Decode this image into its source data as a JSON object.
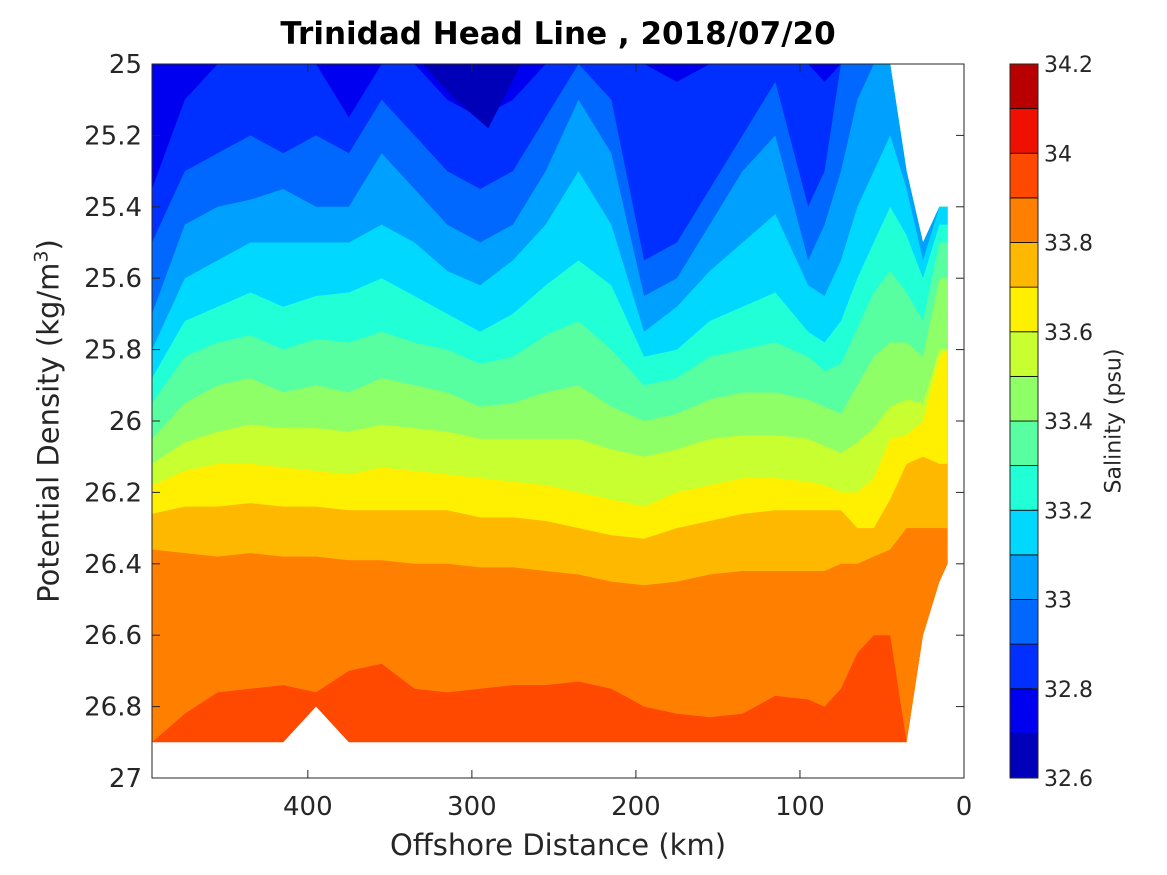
{
  "chart_data": {
    "type": "contour",
    "title": "Trinidad Head Line , 2018/07/20",
    "xlabel": "Offshore Distance (km)",
    "ylabel_main": "Potential Density (kg/m",
    "ylabel_sup": "3",
    "ylabel_close": ")",
    "colorbar_label": "Salinity (psu)",
    "x_axis": {
      "lim": [
        0,
        495
      ],
      "reversed": true,
      "ticks": [
        400,
        300,
        200,
        100,
        0
      ]
    },
    "y_axis": {
      "lim": [
        25,
        27
      ],
      "reversed": true,
      "ticks": [
        25,
        25.2,
        25.4,
        25.6,
        25.8,
        26,
        26.2,
        26.4,
        26.6,
        26.8,
        27
      ]
    },
    "colorbar": {
      "lim": [
        32.6,
        34.2
      ],
      "ticks": [
        32.6,
        32.8,
        33,
        33.2,
        33.4,
        33.6,
        33.8,
        34,
        34.2
      ],
      "levels": [
        32.6,
        32.7,
        32.8,
        32.9,
        33.0,
        33.1,
        33.2,
        33.3,
        33.4,
        33.5,
        33.6,
        33.7,
        33.8,
        33.9,
        34.0,
        34.1,
        34.2
      ],
      "colors": [
        "#00007f",
        "#0000b8",
        "#0000f0",
        "#0030ff",
        "#0068ff",
        "#00a0ff",
        "#00d8ff",
        "#21ffd6",
        "#58ffa0",
        "#8fff68",
        "#c8ff30",
        "#ffef00",
        "#ffb800",
        "#ff7f00",
        "#ff4800",
        "#f01000",
        "#b80000"
      ]
    },
    "x_sections_km": [
      495,
      475,
      455,
      435,
      415,
      395,
      375,
      355,
      335,
      315,
      295,
      275,
      255,
      235,
      215,
      195,
      175,
      155,
      135,
      115,
      95,
      85,
      75,
      65,
      55,
      45,
      35,
      25,
      15,
      10
    ],
    "bottom_density": [
      26.9,
      26.9,
      26.9,
      26.9,
      26.9,
      26.8,
      26.9,
      26.9,
      26.9,
      26.9,
      26.9,
      26.9,
      26.9,
      26.9,
      26.9,
      26.9,
      26.9,
      26.9,
      26.9,
      26.9,
      26.9,
      26.9,
      26.9,
      26.9,
      26.9,
      26.9,
      26.9,
      26.6,
      26.45,
      26.4
    ],
    "top_density": [
      25.0,
      25.0,
      25.0,
      25.0,
      25.0,
      25.0,
      25.0,
      25.0,
      25.0,
      25.0,
      25.0,
      25.0,
      25.0,
      25.0,
      25.0,
      25.0,
      25.0,
      25.0,
      25.0,
      25.0,
      25.0,
      25.0,
      25.0,
      25.0,
      25.0,
      25.0,
      25.3,
      25.5,
      25.4,
      25.4
    ],
    "isohalines": [
      {
        "level": 32.9,
        "density": [
          25.35,
          25.1,
          25.0,
          25.0,
          25.0,
          25.0,
          25.15,
          25.0,
          25.0,
          25.1,
          25.15,
          25.1,
          25.0,
          25.0,
          25.0,
          25.0,
          25.05,
          25.0,
          25.0,
          25.0,
          25.0,
          25.05,
          25.0,
          25.0,
          25.0,
          25.0,
          25.0,
          25.0,
          25.0,
          25.0
        ]
      },
      {
        "level": 33.0,
        "density": [
          25.5,
          25.3,
          25.25,
          25.2,
          25.25,
          25.2,
          25.25,
          25.1,
          25.2,
          25.3,
          25.35,
          25.3,
          25.15,
          25.0,
          25.1,
          25.55,
          25.5,
          25.35,
          25.2,
          25.05,
          25.4,
          25.3,
          25.0,
          25.0,
          25.0,
          25.0,
          25.0,
          25.0,
          25.0,
          25.0
        ]
      },
      {
        "level": 33.1,
        "density": [
          25.7,
          25.45,
          25.4,
          25.38,
          25.35,
          25.4,
          25.4,
          25.25,
          25.35,
          25.45,
          25.5,
          25.45,
          25.3,
          25.1,
          25.25,
          25.65,
          25.6,
          25.45,
          25.3,
          25.2,
          25.55,
          25.45,
          25.3,
          25.1,
          25.0,
          25.0,
          25.0,
          25.0,
          25.0,
          25.0
        ]
      },
      {
        "level": 33.2,
        "density": [
          25.8,
          25.6,
          25.55,
          25.5,
          25.5,
          25.5,
          25.5,
          25.45,
          25.5,
          25.58,
          25.62,
          25.55,
          25.45,
          25.3,
          25.45,
          25.75,
          25.68,
          25.58,
          25.5,
          25.42,
          25.62,
          25.65,
          25.55,
          25.4,
          25.3,
          25.2,
          25.35,
          25.55,
          25.4,
          25.4
        ]
      },
      {
        "level": 33.3,
        "density": [
          25.88,
          25.72,
          25.68,
          25.64,
          25.68,
          25.65,
          25.64,
          25.6,
          25.65,
          25.7,
          25.75,
          25.7,
          25.62,
          25.55,
          25.62,
          25.82,
          25.8,
          25.72,
          25.68,
          25.64,
          25.75,
          25.78,
          25.72,
          25.6,
          25.5,
          25.4,
          25.48,
          25.6,
          25.45,
          25.45
        ]
      },
      {
        "level": 33.4,
        "density": [
          25.95,
          25.82,
          25.78,
          25.76,
          25.8,
          25.77,
          25.78,
          25.75,
          25.78,
          25.8,
          25.84,
          25.82,
          25.76,
          25.72,
          25.8,
          25.9,
          25.88,
          25.82,
          25.8,
          25.78,
          25.82,
          25.86,
          25.84,
          25.74,
          25.64,
          25.58,
          25.64,
          25.72,
          25.5,
          25.5
        ]
      },
      {
        "level": 33.5,
        "density": [
          26.05,
          25.95,
          25.9,
          25.88,
          25.92,
          25.9,
          25.92,
          25.88,
          25.9,
          25.92,
          25.96,
          25.95,
          25.92,
          25.9,
          25.96,
          26.0,
          25.98,
          25.94,
          25.92,
          25.92,
          25.94,
          25.96,
          25.98,
          25.9,
          25.82,
          25.78,
          25.78,
          25.82,
          25.6,
          25.6
        ]
      },
      {
        "level": 33.6,
        "density": [
          26.12,
          26.06,
          26.03,
          26.01,
          26.02,
          26.02,
          26.03,
          26.01,
          26.02,
          26.03,
          26.05,
          26.05,
          26.05,
          26.05,
          26.08,
          26.1,
          26.08,
          26.05,
          26.04,
          26.04,
          26.05,
          26.07,
          26.09,
          26.06,
          26.02,
          25.96,
          25.94,
          25.95,
          25.8,
          25.8
        ]
      },
      {
        "level": 33.7,
        "density": [
          26.18,
          26.14,
          26.12,
          26.12,
          26.13,
          26.14,
          26.15,
          26.13,
          26.14,
          26.15,
          26.16,
          26.17,
          26.18,
          26.2,
          26.22,
          26.24,
          26.2,
          26.18,
          26.16,
          26.16,
          26.17,
          26.18,
          26.2,
          26.2,
          26.16,
          26.05,
          26.04,
          26.0,
          25.82,
          25.8
        ]
      },
      {
        "level": 33.8,
        "density": [
          26.26,
          26.24,
          26.24,
          26.23,
          26.24,
          26.24,
          26.25,
          26.25,
          26.25,
          26.25,
          26.27,
          26.27,
          26.28,
          26.3,
          26.32,
          26.33,
          26.3,
          26.28,
          26.26,
          26.25,
          26.25,
          26.25,
          26.25,
          26.3,
          26.3,
          26.22,
          26.12,
          26.1,
          26.12,
          26.12
        ]
      },
      {
        "level": 33.9,
        "density": [
          26.36,
          26.37,
          26.38,
          26.37,
          26.38,
          26.38,
          26.39,
          26.39,
          26.4,
          26.4,
          26.41,
          26.41,
          26.42,
          26.43,
          26.45,
          26.46,
          26.45,
          26.43,
          26.42,
          26.42,
          26.42,
          26.42,
          26.4,
          26.4,
          26.38,
          26.36,
          26.3,
          26.3,
          26.3,
          26.3
        ]
      },
      {
        "level": 34.0,
        "density": [
          26.9,
          26.82,
          26.76,
          26.75,
          26.74,
          26.76,
          26.7,
          26.68,
          26.75,
          26.76,
          26.75,
          26.74,
          26.74,
          26.73,
          26.75,
          26.8,
          26.82,
          26.83,
          26.82,
          26.77,
          26.78,
          26.8,
          26.75,
          26.65,
          26.6,
          26.6,
          26.9,
          26.9,
          26.9,
          26.9
        ]
      }
    ],
    "grid": false,
    "colorbar_position": "right"
  }
}
